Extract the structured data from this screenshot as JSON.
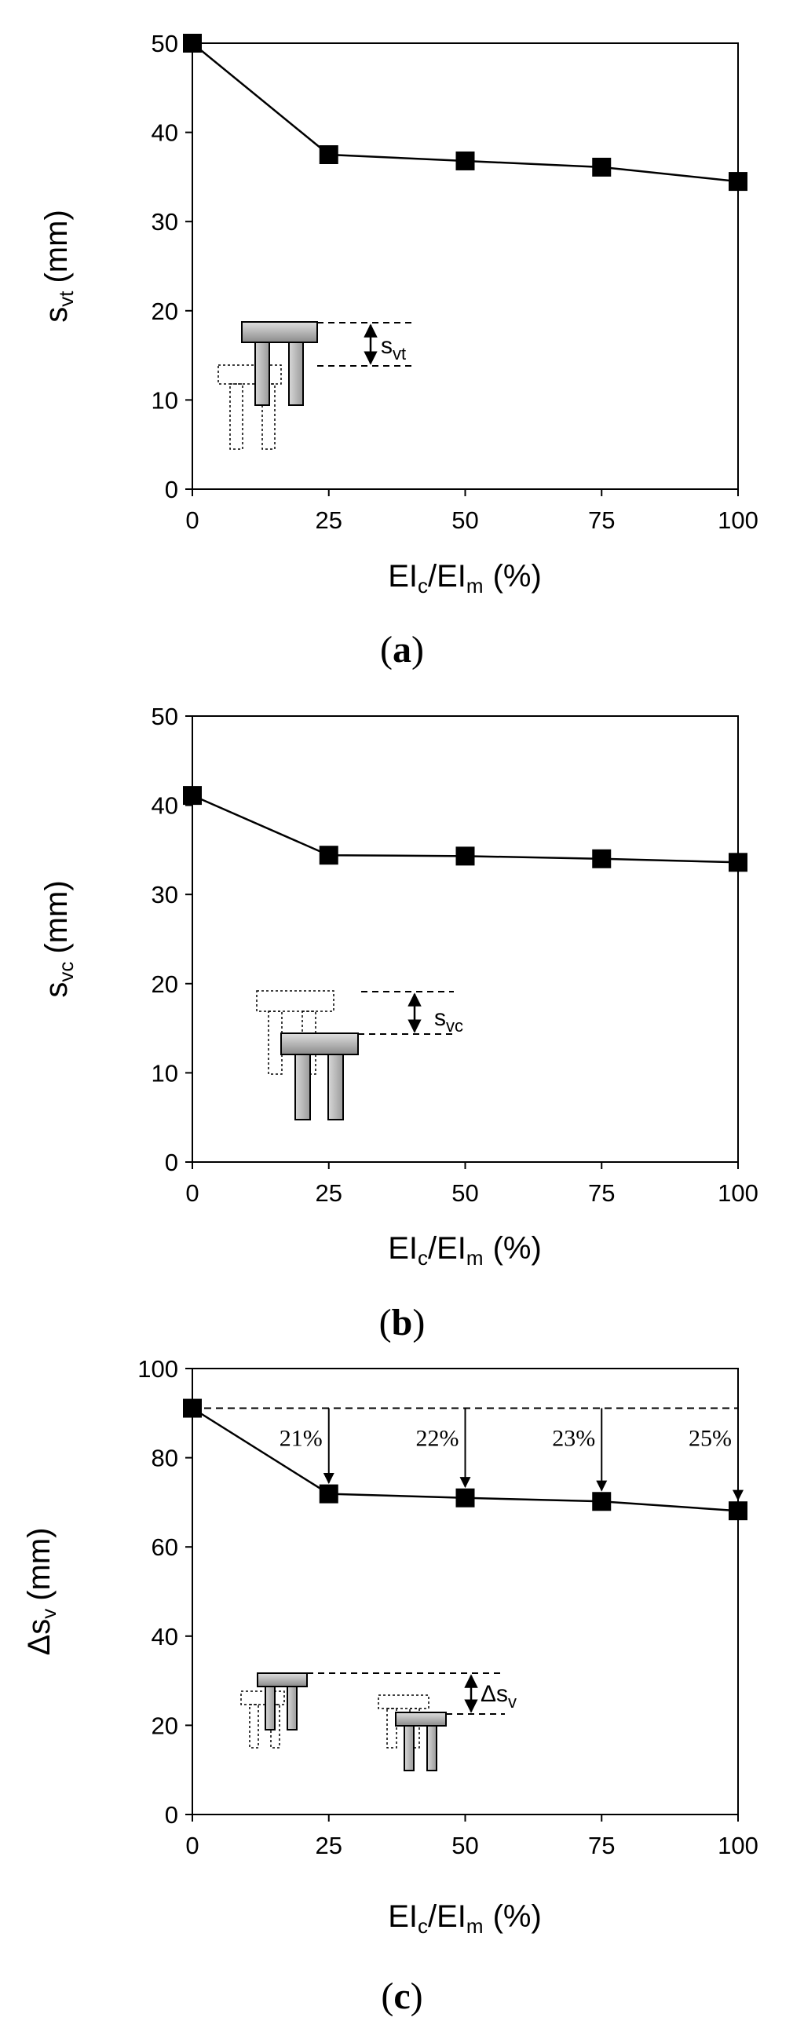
{
  "chart_data": [
    {
      "type": "line",
      "panel_label": "a",
      "ylabel": {
        "main": "s",
        "sub": "vt",
        "unit": "(mm)"
      },
      "xlabel": {
        "a": "EI",
        "a_sub": "c",
        "sep": "/",
        "b": "EI",
        "b_sub": "m",
        "unit": "(%)"
      },
      "x": [
        0,
        25,
        50,
        75,
        100
      ],
      "y": [
        50,
        37.5,
        36.8,
        36.1,
        34.5
      ],
      "xlim": [
        0,
        100
      ],
      "ylim": [
        0,
        50
      ],
      "xticks": [
        "0",
        "25",
        "50",
        "75",
        "100"
      ],
      "yticks": [
        "0",
        "10",
        "20",
        "30",
        "40",
        "50"
      ],
      "grid": false,
      "marker": "square",
      "inset": {
        "label": "s",
        "sub": "vt"
      }
    },
    {
      "type": "line",
      "panel_label": "b",
      "ylabel": {
        "main": "s",
        "sub": "vc",
        "unit": "(mm)"
      },
      "xlabel": {
        "a": "EI",
        "a_sub": "c",
        "sep": "/",
        "b": "EI",
        "b_sub": "m",
        "unit": "(%)"
      },
      "x": [
        0,
        25,
        50,
        75,
        100
      ],
      "y": [
        41.1,
        34.4,
        34.3,
        34.0,
        33.6
      ],
      "xlim": [
        0,
        100
      ],
      "ylim": [
        0,
        50
      ],
      "xticks": [
        "0",
        "25",
        "50",
        "75",
        "100"
      ],
      "yticks": [
        "0",
        "10",
        "20",
        "30",
        "40",
        "50"
      ],
      "grid": false,
      "marker": "square",
      "inset": {
        "label": "s",
        "sub": "vc"
      }
    },
    {
      "type": "line",
      "panel_label": "c",
      "ylabel": {
        "main": "Δs",
        "sub": "v",
        "unit": "(mm)"
      },
      "xlabel": {
        "a": "EI",
        "a_sub": "c",
        "sep": "/",
        "b": "EI",
        "b_sub": "m",
        "unit": "(%)"
      },
      "x": [
        0,
        25,
        50,
        75,
        100
      ],
      "y": [
        91.1,
        71.9,
        71.0,
        70.2,
        68.1
      ],
      "xlim": [
        0,
        100
      ],
      "ylim": [
        0,
        100
      ],
      "xticks": [
        "0",
        "25",
        "50",
        "75",
        "100"
      ],
      "yticks": [
        "0",
        "20",
        "40",
        "60",
        "80",
        "100"
      ],
      "grid": false,
      "marker": "square",
      "reference_line": 91.1,
      "annotations": [
        {
          "x": 25,
          "text": "21%"
        },
        {
          "x": 50,
          "text": "22%"
        },
        {
          "x": 75,
          "text": "23%"
        },
        {
          "x": 100,
          "text": "25%"
        }
      ],
      "inset": {
        "label": "Δs",
        "sub": "v"
      }
    }
  ]
}
